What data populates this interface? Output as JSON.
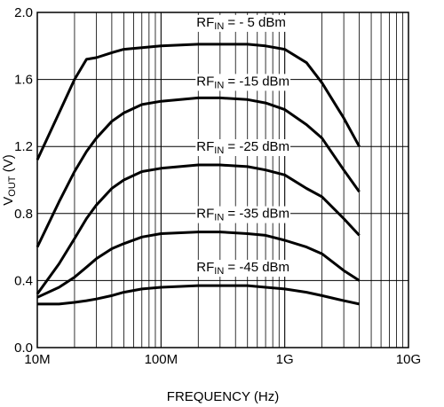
{
  "chart_data": {
    "type": "line",
    "title": "",
    "xlabel": "FREQUENCY (Hz)",
    "ylabel": {
      "main": "V",
      "sub": "OUT",
      "unit": " (V)"
    },
    "x_scale": "log",
    "xlim": [
      10000000,
      10000000000
    ],
    "ylim": [
      0.0,
      2.0
    ],
    "x_ticks": [
      {
        "value": 10000000,
        "label": "10M"
      },
      {
        "value": 100000000,
        "label": "100M"
      },
      {
        "value": 1000000000,
        "label": "1G"
      },
      {
        "value": 10000000000,
        "label": "10G"
      }
    ],
    "y_ticks": [
      {
        "value": 0.0,
        "label": "0.0"
      },
      {
        "value": 0.4,
        "label": "0.4"
      },
      {
        "value": 0.8,
        "label": "0.8"
      },
      {
        "value": 1.2,
        "label": "1.2"
      },
      {
        "value": 1.6,
        "label": "1.6"
      },
      {
        "value": 2.0,
        "label": "2.0"
      }
    ],
    "grid": true,
    "series": [
      {
        "label": {
          "main": "RF",
          "sub": "IN",
          "rest": " = - 5 dBm"
        },
        "x": [
          10000000,
          15000000,
          20000000,
          25000000,
          30000000,
          40000000,
          50000000,
          70000000,
          100000000,
          200000000,
          300000000,
          500000000,
          700000000,
          1000000000,
          1500000000,
          2000000000,
          3000000000,
          4000000000
        ],
        "y": [
          1.12,
          1.4,
          1.6,
          1.72,
          1.73,
          1.76,
          1.78,
          1.79,
          1.8,
          1.81,
          1.81,
          1.81,
          1.8,
          1.78,
          1.7,
          1.58,
          1.37,
          1.2
        ]
      },
      {
        "label": {
          "main": "RF",
          "sub": "IN",
          "rest": " = -15 dBm"
        },
        "x": [
          10000000,
          15000000,
          20000000,
          25000000,
          30000000,
          40000000,
          50000000,
          70000000,
          100000000,
          200000000,
          300000000,
          500000000,
          700000000,
          1000000000,
          1500000000,
          2000000000,
          3000000000,
          4000000000
        ],
        "y": [
          0.6,
          0.87,
          1.05,
          1.17,
          1.25,
          1.35,
          1.4,
          1.45,
          1.47,
          1.49,
          1.49,
          1.48,
          1.46,
          1.42,
          1.33,
          1.25,
          1.06,
          0.93
        ]
      },
      {
        "label": {
          "main": "RF",
          "sub": "IN",
          "rest": " = -25 dBm"
        },
        "x": [
          10000000,
          15000000,
          20000000,
          25000000,
          30000000,
          40000000,
          50000000,
          70000000,
          100000000,
          200000000,
          300000000,
          500000000,
          700000000,
          1000000000,
          1500000000,
          2000000000,
          3000000000,
          4000000000
        ],
        "y": [
          0.32,
          0.5,
          0.65,
          0.77,
          0.85,
          0.95,
          1.0,
          1.05,
          1.07,
          1.09,
          1.09,
          1.08,
          1.06,
          1.03,
          0.95,
          0.9,
          0.77,
          0.67
        ]
      },
      {
        "label": {
          "main": "RF",
          "sub": "IN",
          "rest": " = -35 dBm"
        },
        "x": [
          10000000,
          15000000,
          20000000,
          25000000,
          30000000,
          40000000,
          50000000,
          70000000,
          100000000,
          200000000,
          300000000,
          500000000,
          700000000,
          1000000000,
          1500000000,
          2000000000,
          3000000000,
          4000000000
        ],
        "y": [
          0.3,
          0.36,
          0.42,
          0.48,
          0.53,
          0.59,
          0.62,
          0.66,
          0.68,
          0.69,
          0.69,
          0.68,
          0.67,
          0.64,
          0.6,
          0.56,
          0.46,
          0.4
        ]
      },
      {
        "label": {
          "main": "RF",
          "sub": "IN",
          "rest": " = -45 dBm"
        },
        "x": [
          10000000,
          15000000,
          20000000,
          25000000,
          30000000,
          40000000,
          50000000,
          70000000,
          100000000,
          200000000,
          300000000,
          500000000,
          700000000,
          1000000000,
          1500000000,
          2000000000,
          3000000000,
          4000000000
        ],
        "y": [
          0.26,
          0.26,
          0.27,
          0.28,
          0.29,
          0.31,
          0.33,
          0.35,
          0.36,
          0.37,
          0.37,
          0.37,
          0.36,
          0.35,
          0.33,
          0.31,
          0.28,
          0.26
        ]
      }
    ]
  }
}
